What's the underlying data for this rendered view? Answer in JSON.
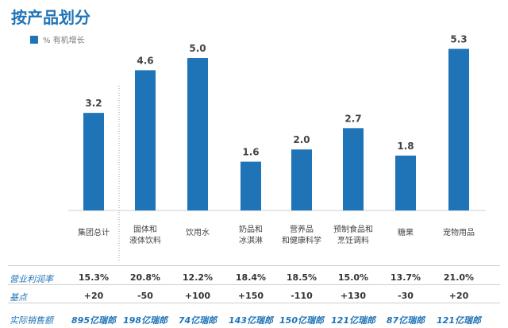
{
  "title": "按产品划分",
  "colors": {
    "bar": "#1f73b7",
    "accent": "#1f73b7",
    "grid": "#cfcfcf"
  },
  "chart_data": {
    "type": "bar",
    "series": [
      {
        "name": "% 有机增长",
        "values": [
          3.2,
          4.6,
          5.0,
          1.6,
          2.0,
          2.7,
          1.8,
          5.3
        ]
      }
    ],
    "categories": [
      [
        "集团总计"
      ],
      [
        "固体和",
        "液体饮料"
      ],
      [
        "饮用水"
      ],
      [
        "奶品和",
        "冰淇淋"
      ],
      [
        "营养品",
        "和健康科学"
      ],
      [
        "预制食品和",
        "烹饪调料"
      ],
      [
        "糖果"
      ],
      [
        "宠物用品"
      ]
    ],
    "data_labels": [
      "3.2",
      "4.6",
      "5.0",
      "1.6",
      "2.0",
      "2.7",
      "1.8",
      "5.3"
    ],
    "ylim": [
      0,
      5.6
    ]
  },
  "rows": [
    {
      "label": "营业利润率",
      "style": "plain",
      "values": [
        "15.3%",
        "20.8%",
        "12.2%",
        "18.4%",
        "18.5%",
        "15.0%",
        "13.7%",
        "21.0%"
      ]
    },
    {
      "label": "基点",
      "style": "plain",
      "values": [
        "+20",
        "-50",
        "+100",
        "+150",
        "-110",
        "+130",
        "-30",
        "+20"
      ]
    },
    {
      "label": "实际销售额",
      "style": "sales",
      "values": [
        "895亿瑞郎",
        "198亿瑞郎",
        "74亿瑞郎",
        "143亿瑞郎",
        "150亿瑞郎",
        "121亿瑞郎",
        "87亿瑞郎",
        "121亿瑞郎"
      ]
    }
  ]
}
